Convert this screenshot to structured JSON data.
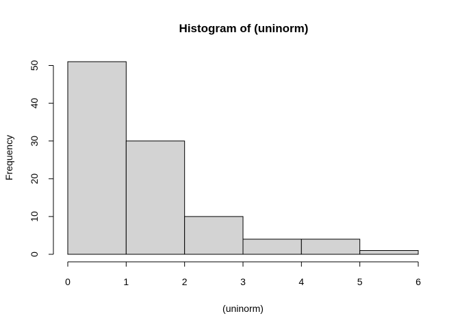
{
  "chart_data": {
    "type": "bar",
    "subtype": "histogram",
    "title": "Histogram of (uninorm)",
    "xlabel": "(uninorm)",
    "ylabel": "Frequency",
    "bins": [
      {
        "start": 0,
        "end": 1,
        "count": 51
      },
      {
        "start": 1,
        "end": 2,
        "count": 30
      },
      {
        "start": 2,
        "end": 3,
        "count": 10
      },
      {
        "start": 3,
        "end": 4,
        "count": 4
      },
      {
        "start": 4,
        "end": 5,
        "count": 4
      },
      {
        "start": 5,
        "end": 6,
        "count": 1
      }
    ],
    "xlim": [
      0,
      6
    ],
    "ylim": [
      0,
      51
    ],
    "x_ticks": [
      "0",
      "1",
      "2",
      "3",
      "4",
      "5",
      "6"
    ],
    "y_ticks": [
      "0",
      "10",
      "20",
      "30",
      "40",
      "50"
    ],
    "grid": false,
    "legend": "none",
    "colors": {
      "bar_fill": "#d3d3d3",
      "bar_stroke": "#000000",
      "axis": "#000000",
      "background": "#ffffff"
    }
  }
}
